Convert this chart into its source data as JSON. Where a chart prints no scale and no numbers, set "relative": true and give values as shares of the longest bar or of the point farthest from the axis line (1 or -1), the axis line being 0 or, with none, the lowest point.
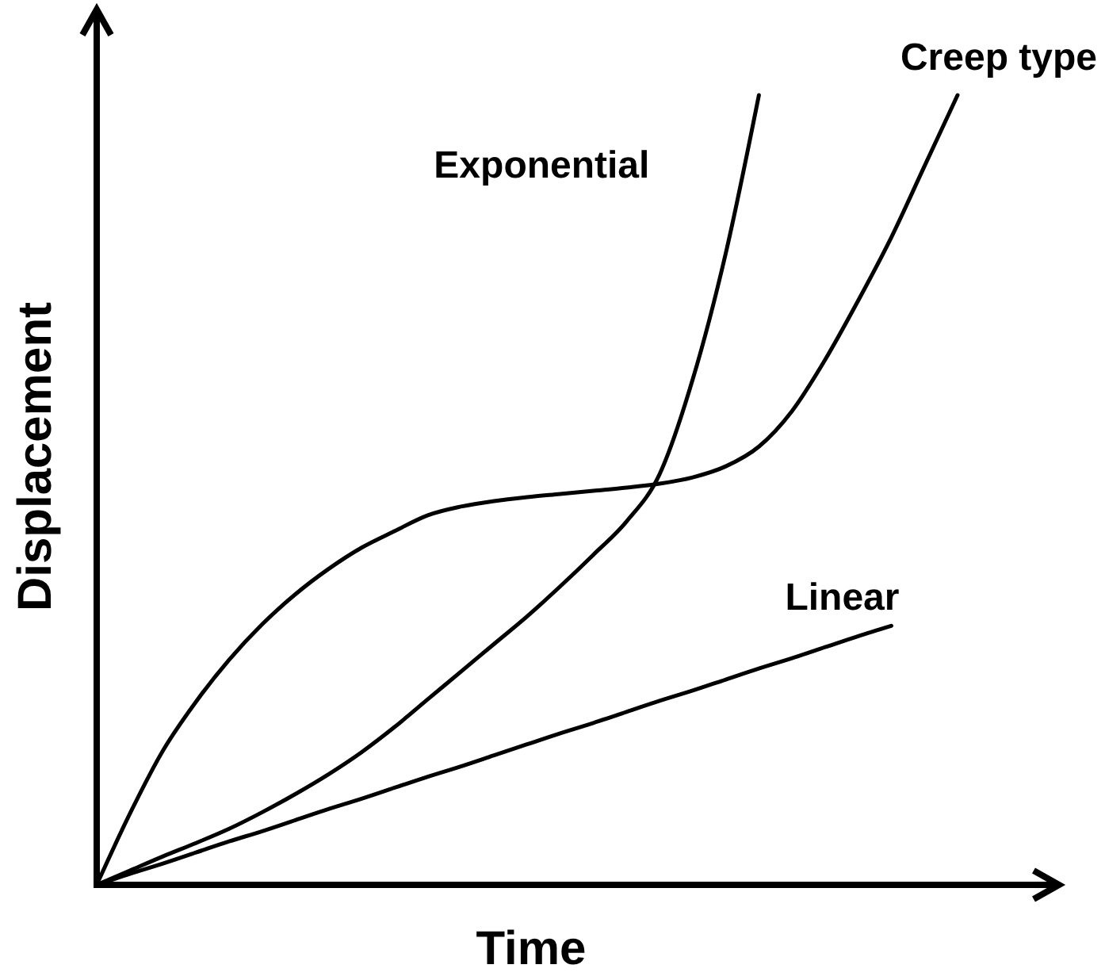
{
  "chart_data": {
    "type": "line",
    "relative": true,
    "xlabel": "Time",
    "ylabel": "Displacement",
    "categories": [
      null,
      null,
      null,
      null,
      null,
      null,
      null,
      null,
      null,
      null,
      null,
      null,
      null,
      null,
      null,
      null,
      null,
      null,
      null,
      null,
      null,
      null,
      null,
      null,
      null,
      null,
      null
    ],
    "series": [
      {
        "name": "Linear",
        "color": "#000000",
        "values": [
          0,
          0.014,
          0.027,
          0.041,
          0.055,
          0.068,
          0.082,
          0.096,
          0.109,
          0.123,
          0.137,
          0.15,
          0.164,
          0.178,
          0.192,
          0.205,
          0.219,
          0.233,
          0.246,
          0.26,
          0.274,
          0.287,
          0.301,
          0.315,
          0.328,
          null,
          null
        ]
      },
      {
        "name": "Exponential",
        "color": "#000000",
        "values": [
          0,
          0.018,
          0.036,
          0.053,
          0.071,
          0.092,
          0.115,
          0.14,
          0.168,
          0.2,
          0.235,
          0.27,
          0.305,
          0.34,
          0.378,
          0.418,
          0.46,
          0.52,
          0.64,
          0.8,
          1,
          null,
          null,
          null,
          null,
          null,
          null
        ]
      },
      {
        "name": "Creep type",
        "color": "#000000",
        "values": [
          0,
          0.09,
          0.17,
          0.232,
          0.285,
          0.33,
          0.368,
          0.4,
          0.427,
          0.448,
          0.468,
          0.479,
          0.486,
          0.491,
          0.495,
          0.499,
          0.503,
          0.508,
          0.516,
          0.53,
          0.555,
          0.6,
          0.665,
          0.74,
          0.82,
          0.91,
          1
        ]
      }
    ]
  }
}
